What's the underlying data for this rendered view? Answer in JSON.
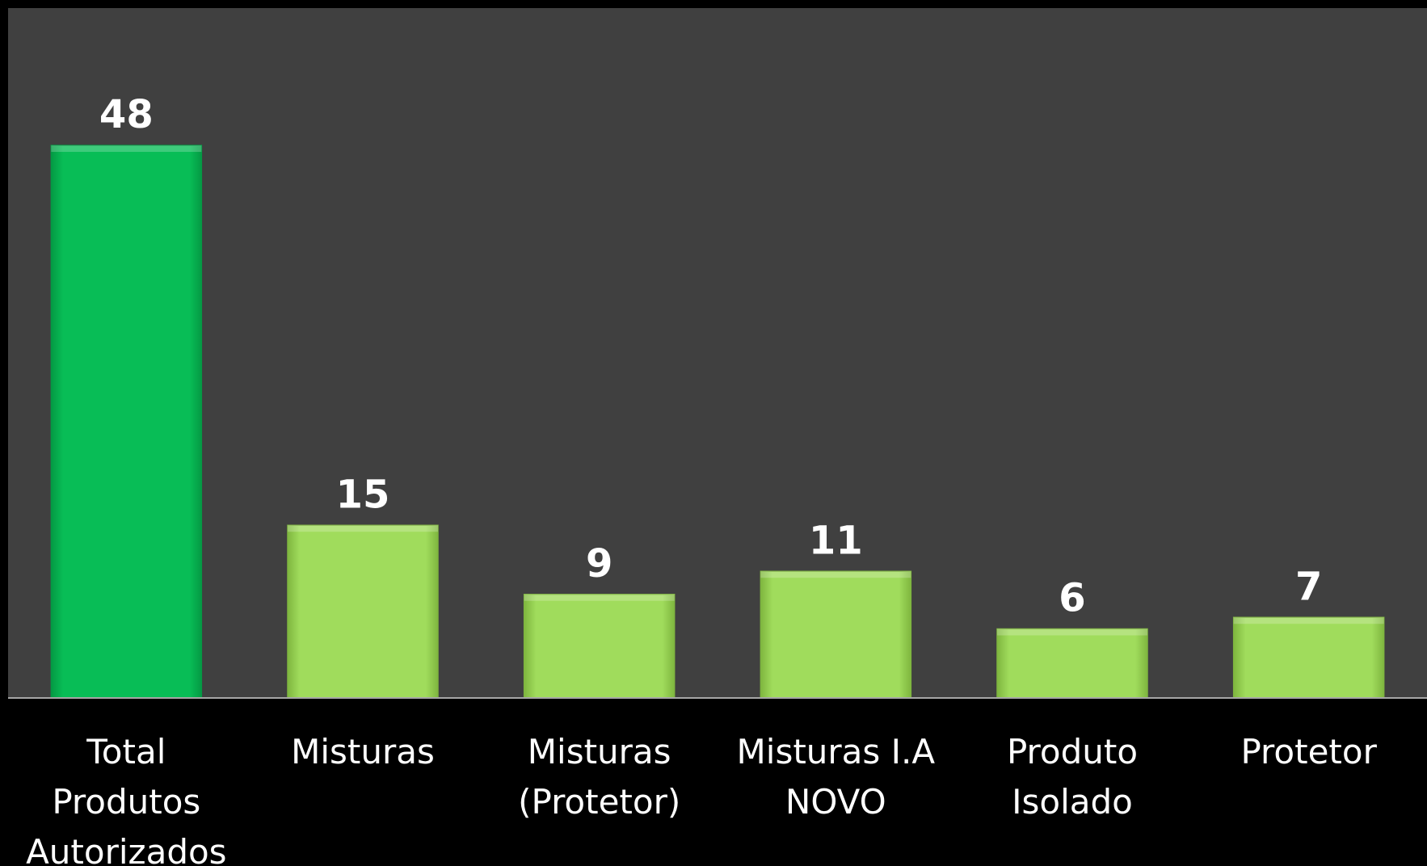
{
  "chart_data": {
    "type": "bar",
    "categories": [
      "Total Produtos Autorizados",
      "Misturas",
      "Misturas (Protetor)",
      "Misturas I.A NOVO",
      "Produto Isolado",
      "Protetor"
    ],
    "category_lines": [
      [
        "Total",
        "Produtos",
        "Autorizados"
      ],
      [
        "Misturas"
      ],
      [
        "Misturas",
        "(Protetor)"
      ],
      [
        "Misturas I.A",
        "NOVO"
      ],
      [
        "Produto",
        "Isolado"
      ],
      [
        "Protetor"
      ]
    ],
    "values": [
      48,
      15,
      9,
      11,
      6,
      7
    ],
    "value_labels": [
      "48",
      "15",
      "9",
      "11",
      "6",
      "7"
    ],
    "title": "",
    "xlabel": "",
    "ylabel": "",
    "ylim": [
      0,
      50
    ],
    "grid": false,
    "legend": "none",
    "colors": {
      "plot_background": "#404040",
      "page_background": "#000000",
      "highlight_bar": "#08bd56",
      "highlight_bar_edge": "#049a44",
      "bar": "#a0dc5c",
      "bar_edge": "#7fb63f",
      "axis_line": "#a6a6a6",
      "text": "#ffffff"
    }
  }
}
